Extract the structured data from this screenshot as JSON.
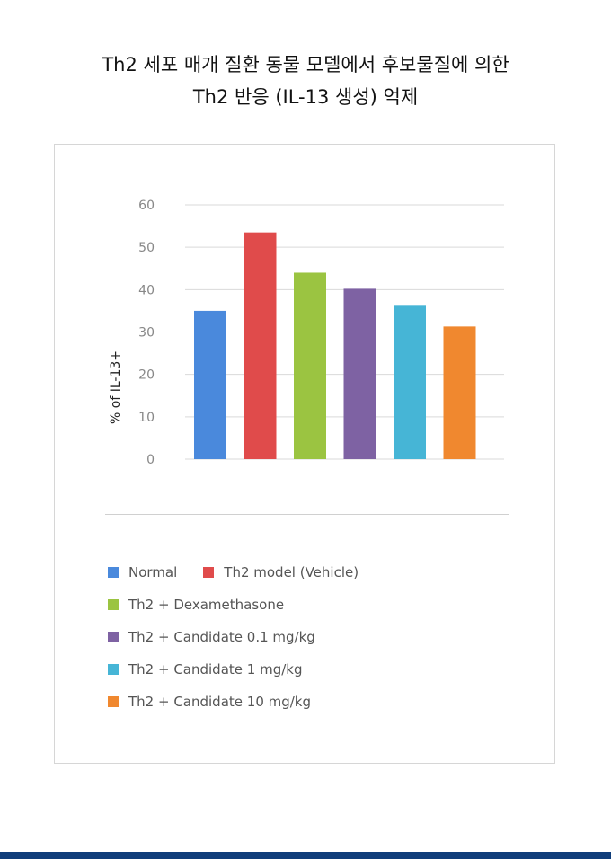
{
  "title": {
    "line1": "Th2 세포 매개 질환 동물 모델에서 후보물질에 의한",
    "line2": "Th2 반응 (IL-13 생성) 억제"
  },
  "chart_data": {
    "type": "bar",
    "title": "Th2 세포 매개 질환 동물 모델에서 후보물질에 의한 Th2 반응 (IL-13 생성) 억제",
    "ylabel": "% of IL-13+",
    "xlabel": "",
    "ylim": [
      0,
      60
    ],
    "yticks": [
      0,
      10,
      20,
      30,
      40,
      50,
      60
    ],
    "grid": true,
    "legend_placement": "bottom",
    "categories": [
      "Normal",
      "Th2 model (Vehicle)",
      "Th2 + Dexamethasone",
      "Th2 + Candidate 0.1 mg/kg",
      "Th2 + Candidate 1 mg/kg",
      "Th2 + Candidate 10 mg/kg"
    ],
    "values": [
      35,
      53.5,
      44,
      40.2,
      36.4,
      31.3
    ],
    "colors": [
      "#4a89dc",
      "#e04b4b",
      "#9bc441",
      "#7e62a3",
      "#46b5d6",
      "#f0882f"
    ]
  }
}
